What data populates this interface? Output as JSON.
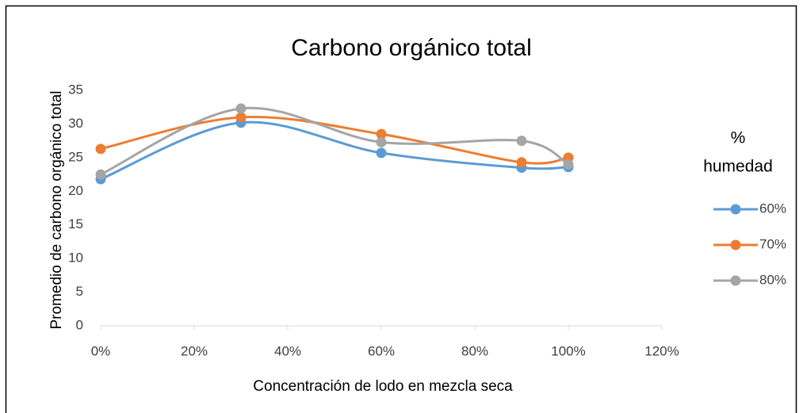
{
  "chart_data": {
    "type": "scatter",
    "title": "Carbono orgánico total",
    "x_label": "Concentración de lodo en mezcla seca",
    "y_label": "Promedio de carbono orgánico total",
    "legend_title": [
      "%",
      "humedad"
    ],
    "legend_position": "right",
    "smooth": true,
    "x": [
      0,
      30,
      60,
      90,
      100
    ],
    "series": [
      {
        "name": "60%",
        "color": "#5b9bd5",
        "values": [
          21.8,
          30.2,
          25.7,
          23.5,
          23.6
        ]
      },
      {
        "name": "70%",
        "color": "#ed7d31",
        "values": [
          26.3,
          31.0,
          28.5,
          24.3,
          25.0
        ]
      },
      {
        "name": "80%",
        "color": "#a5a5a5",
        "values": [
          22.5,
          32.3,
          27.3,
          27.5,
          24.0
        ]
      }
    ],
    "xlim": [
      0,
      120
    ],
    "xticks": [
      {
        "value": 0,
        "label": "0%"
      },
      {
        "value": 20,
        "label": "20%"
      },
      {
        "value": 40,
        "label": "40%"
      },
      {
        "value": 60,
        "label": "60%"
      },
      {
        "value": 80,
        "label": "80%"
      },
      {
        "value": 100,
        "label": "100%"
      },
      {
        "value": 120,
        "label": "120%"
      }
    ],
    "ylim": [
      0,
      35
    ],
    "yticks": [
      0,
      5,
      10,
      15,
      20,
      25,
      30,
      35
    ]
  }
}
